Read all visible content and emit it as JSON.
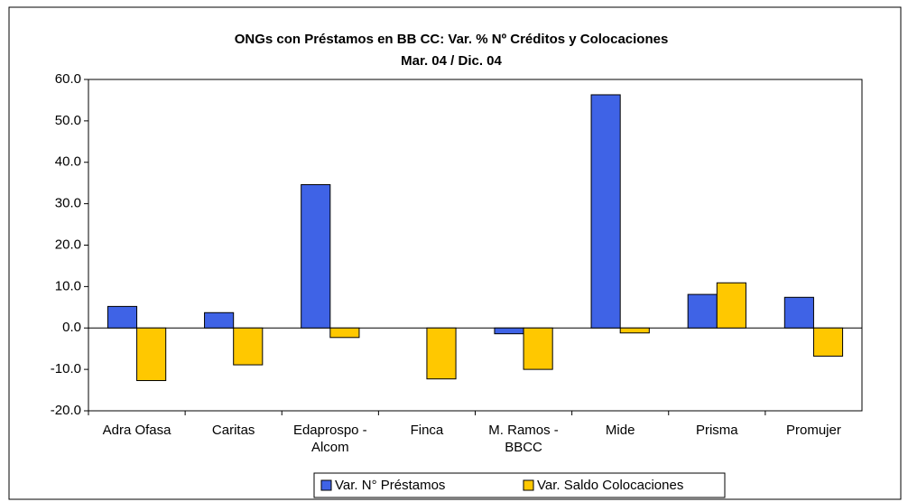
{
  "chart_data": {
    "type": "bar",
    "title": "ONGs con Préstamos en BB CC:  Var. % Nº Créditos y Colocaciones",
    "subtitle": "Mar. 04 / Dic. 04",
    "categories": [
      "Adra Ofasa",
      "Caritas",
      "Edaprospo - Alcom",
      "Finca",
      "M. Ramos - BBCC",
      "Mide",
      "Prisma",
      "Promujer"
    ],
    "series": [
      {
        "name": "Var. N° Préstamos",
        "color": "#3f63e6",
        "values": [
          5.2,
          3.7,
          34.6,
          null,
          -1.4,
          56.3,
          8.1,
          7.4
        ]
      },
      {
        "name": "Var. Saldo Colocaciones",
        "color": "#ffc800",
        "values": [
          -12.7,
          -8.9,
          -2.3,
          -12.3,
          -10.0,
          -1.2,
          10.9,
          -6.8
        ]
      }
    ],
    "ylim": [
      -20,
      60
    ],
    "yticks": [
      {
        "value": -20,
        "label": "-20.0"
      },
      {
        "value": -10,
        "label": "-10.0"
      },
      {
        "value": 0,
        "label": "0.0"
      },
      {
        "value": 10,
        "label": "10.0"
      },
      {
        "value": 20,
        "label": "20.0"
      },
      {
        "value": 30,
        "label": "30.0"
      },
      {
        "value": 40,
        "label": "40.0"
      },
      {
        "value": 50,
        "label": "50.0"
      },
      {
        "value": 60,
        "label": "60.0"
      }
    ],
    "legend": "bottom"
  }
}
